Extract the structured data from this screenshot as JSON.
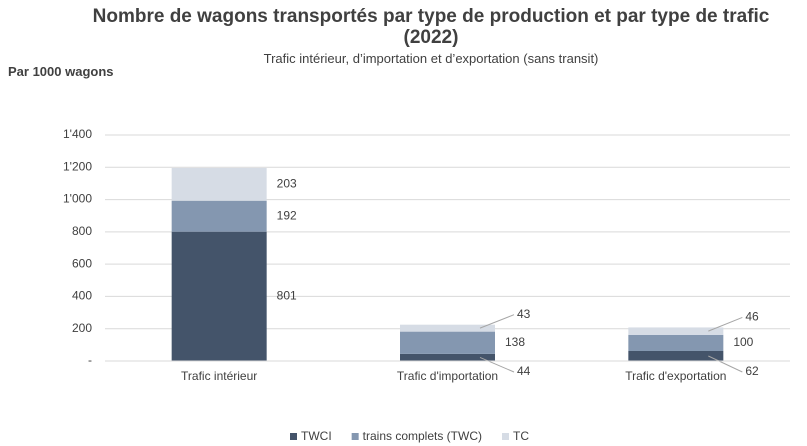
{
  "chart_data": {
    "type": "stacked_bar",
    "title": "Nombre de wagons transportés par type de production et par type de trafic (2022)",
    "subtitle": "Trafic intérieur, d’importation et d’exportation (sans transit)",
    "y_label": "Par 1000 wagons",
    "categories": [
      "Trafic intérieur",
      "Trafic d'importation",
      "Trafic d'exportation"
    ],
    "series": [
      {
        "name": "TWCI",
        "color": "#44546a",
        "values": [
          801,
          44,
          62
        ]
      },
      {
        "name": "trains complets (TWC)",
        "color": "#8497b0",
        "values": [
          192,
          138,
          100
        ]
      },
      {
        "name": "TC",
        "color": "#d6dce5",
        "values": [
          203,
          43,
          46
        ]
      }
    ],
    "ylim": [
      0,
      1400
    ],
    "yticks": [
      {
        "value": 0,
        "label": "-"
      },
      200,
      400,
      600,
      800,
      {
        "value": 1000,
        "label": "1'000"
      },
      {
        "value": 1200,
        "label": "1'200"
      },
      {
        "value": 1400,
        "label": "1'400"
      }
    ],
    "grid": true,
    "legend": "bottom"
  }
}
